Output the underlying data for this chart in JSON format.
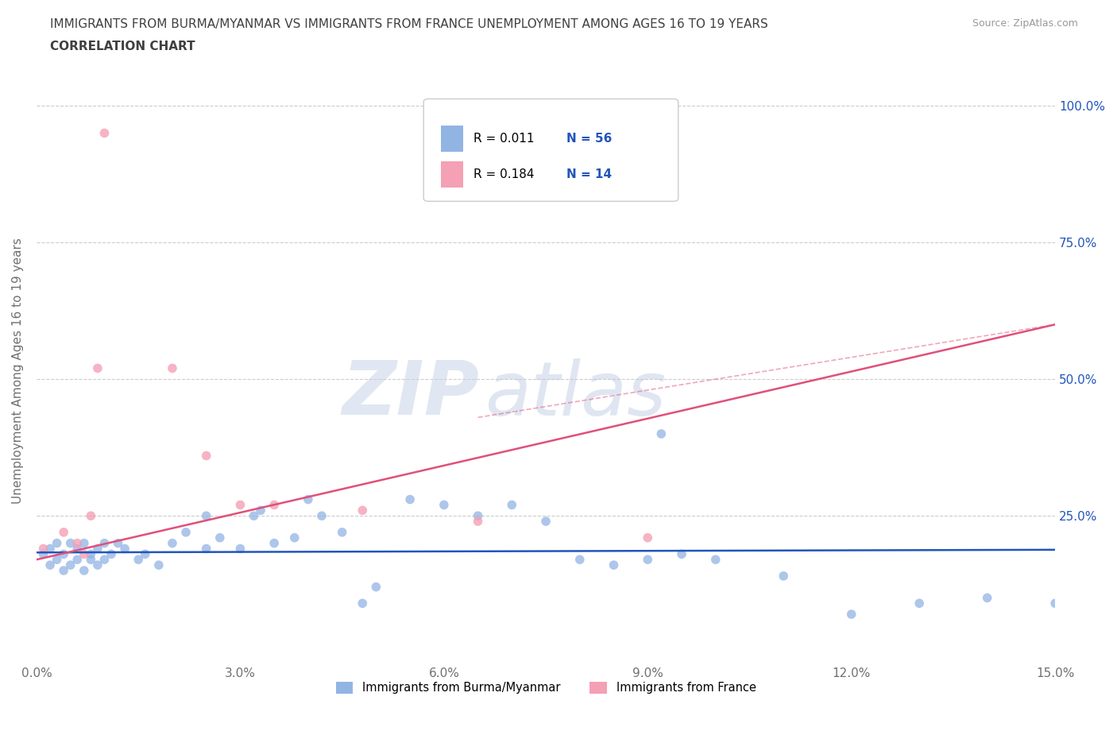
{
  "title_line1": "IMMIGRANTS FROM BURMA/MYANMAR VS IMMIGRANTS FROM FRANCE UNEMPLOYMENT AMONG AGES 16 TO 19 YEARS",
  "title_line2": "CORRELATION CHART",
  "source_text": "Source: ZipAtlas.com",
  "ylabel": "Unemployment Among Ages 16 to 19 years",
  "xmin": 0.0,
  "xmax": 0.15,
  "ymin": -0.02,
  "ymax": 1.05,
  "yticks": [
    0.0,
    0.25,
    0.5,
    0.75,
    1.0
  ],
  "ytick_labels_right": [
    "",
    "25.0%",
    "50.0%",
    "75.0%",
    "100.0%"
  ],
  "xticks": [
    0.0,
    0.03,
    0.06,
    0.09,
    0.12,
    0.15
  ],
  "xtick_labels": [
    "0.0%",
    "3.0%",
    "6.0%",
    "9.0%",
    "12.0%",
    "15.0%"
  ],
  "legend_label_burma": "Immigrants from Burma/Myanmar",
  "legend_label_france": "Immigrants from France",
  "color_burma": "#92b4e3",
  "color_france": "#f4a0b5",
  "color_burma_line": "#2255bb",
  "color_france_line": "#e0507a",
  "R_burma": 0.011,
  "N_burma": 56,
  "R_france": 0.184,
  "N_france": 14,
  "watermark_ZIP": "ZIP",
  "watermark_atlas": "atlas",
  "background_color": "#ffffff",
  "grid_color": "#cccccc",
  "title_color": "#404040",
  "axis_label_color": "#707070",
  "legend_R_color": "#2255bb",
  "burma_x": [
    0.001,
    0.002,
    0.002,
    0.003,
    0.003,
    0.004,
    0.004,
    0.005,
    0.005,
    0.006,
    0.006,
    0.007,
    0.007,
    0.008,
    0.008,
    0.009,
    0.009,
    0.01,
    0.01,
    0.011,
    0.012,
    0.013,
    0.015,
    0.016,
    0.018,
    0.02,
    0.022,
    0.025,
    0.025,
    0.027,
    0.03,
    0.032,
    0.033,
    0.035,
    0.038,
    0.04,
    0.042,
    0.045,
    0.048,
    0.05,
    0.055,
    0.06,
    0.065,
    0.07,
    0.075,
    0.08,
    0.085,
    0.09,
    0.092,
    0.095,
    0.1,
    0.11,
    0.12,
    0.13,
    0.14,
    0.15
  ],
  "burma_y": [
    0.18,
    0.16,
    0.19,
    0.17,
    0.2,
    0.15,
    0.18,
    0.16,
    0.2,
    0.17,
    0.19,
    0.15,
    0.2,
    0.17,
    0.18,
    0.16,
    0.19,
    0.17,
    0.2,
    0.18,
    0.2,
    0.19,
    0.17,
    0.18,
    0.16,
    0.2,
    0.22,
    0.19,
    0.25,
    0.21,
    0.19,
    0.25,
    0.26,
    0.2,
    0.21,
    0.28,
    0.25,
    0.22,
    0.09,
    0.12,
    0.28,
    0.27,
    0.25,
    0.27,
    0.24,
    0.17,
    0.16,
    0.17,
    0.4,
    0.18,
    0.17,
    0.14,
    0.07,
    0.09,
    0.1,
    0.09
  ],
  "france_x": [
    0.001,
    0.004,
    0.006,
    0.007,
    0.008,
    0.009,
    0.01,
    0.02,
    0.025,
    0.03,
    0.035,
    0.048,
    0.065,
    0.09
  ],
  "france_y": [
    0.19,
    0.22,
    0.2,
    0.18,
    0.25,
    0.52,
    0.95,
    0.52,
    0.36,
    0.27,
    0.27,
    0.26,
    0.24,
    0.21
  ],
  "burma_line_y0": 0.183,
  "burma_line_y1": 0.188,
  "france_line_y0": 0.17,
  "france_line_y1": 0.6
}
